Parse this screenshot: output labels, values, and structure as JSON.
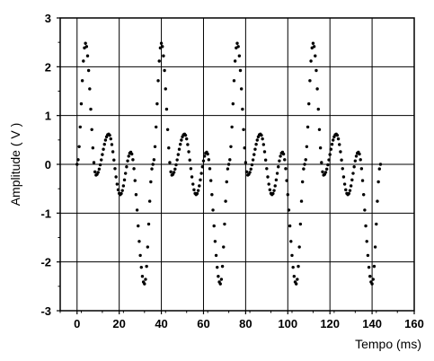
{
  "chart_data": {
    "type": "scatter",
    "title": "",
    "xlabel": "Tempo (ms)",
    "ylabel": "Amplitude ( V )",
    "xlim": [
      -8,
      160
    ],
    "ylim": [
      -3,
      3
    ],
    "x_ticks": [
      0,
      20,
      40,
      60,
      80,
      100,
      120,
      140,
      160
    ],
    "y_ticks": [
      -3,
      -2,
      -1,
      0,
      1,
      2,
      3
    ],
    "grid": true,
    "marker": "small filled circles",
    "signal": {
      "period_ms": 36,
      "sample_interval_ms": 0.5,
      "start_ms": 0,
      "end_ms": 144,
      "extrema": [
        {
          "t": 0.0,
          "v": 0.0
        },
        {
          "t": 4.0,
          "v": 2.48
        },
        {
          "t": 9.0,
          "v": -0.22
        },
        {
          "t": 15.0,
          "v": 0.62
        },
        {
          "t": 20.5,
          "v": -0.62
        },
        {
          "t": 25.5,
          "v": 0.25
        },
        {
          "t": 32.0,
          "v": -2.45
        },
        {
          "t": 36.0,
          "v": 0.0
        }
      ]
    }
  }
}
